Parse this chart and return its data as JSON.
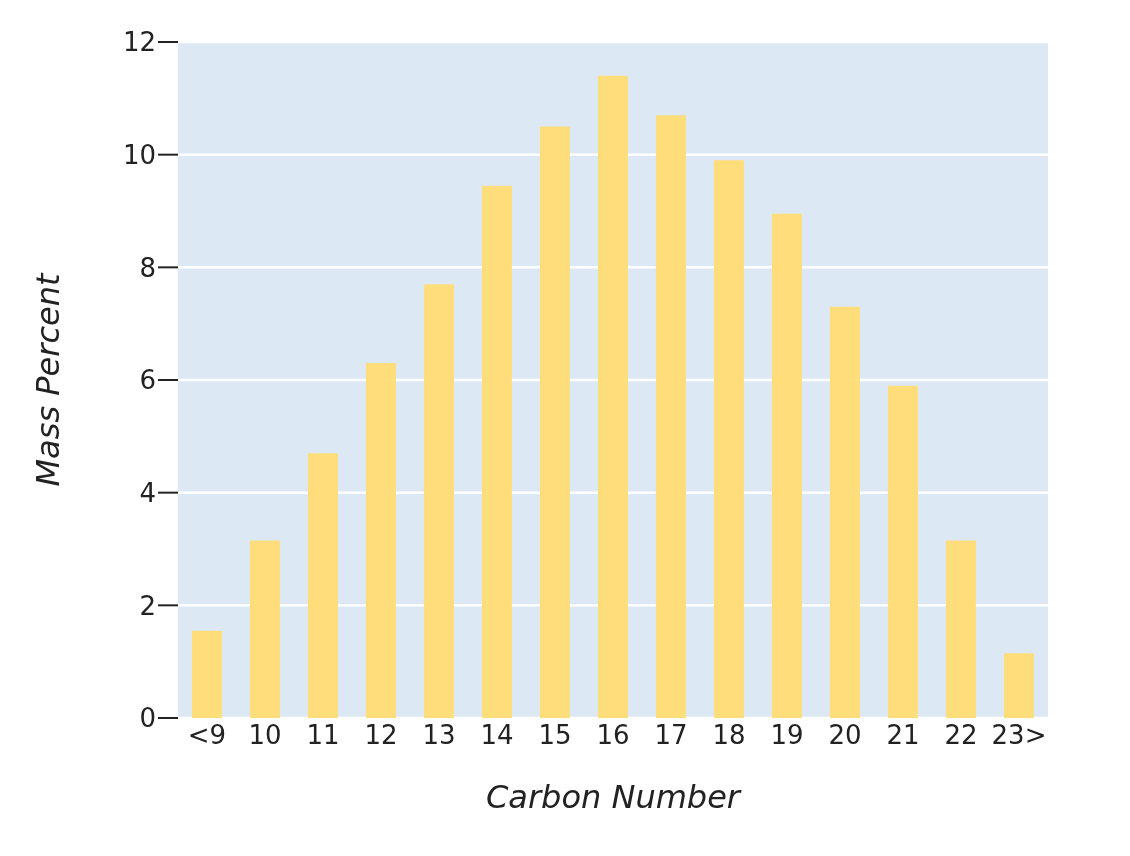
{
  "chart_data": {
    "type": "bar",
    "xlabel": "Carbon Number",
    "ylabel": "Mass  Percent",
    "categories": [
      "<9",
      "10",
      "11",
      "12",
      "13",
      "14",
      "15",
      "16",
      "17",
      "18",
      "19",
      "20",
      "21",
      "22",
      "23>"
    ],
    "values": [
      1.55,
      3.15,
      4.7,
      6.3,
      7.7,
      9.45,
      10.5,
      11.4,
      10.7,
      9.9,
      8.95,
      7.3,
      5.9,
      3.15,
      1.15
    ],
    "color": "#ffdd7a",
    "ylim": [
      0,
      12
    ],
    "yticks": [
      0,
      2,
      4,
      6,
      8,
      10,
      12
    ],
    "grid": "y"
  }
}
